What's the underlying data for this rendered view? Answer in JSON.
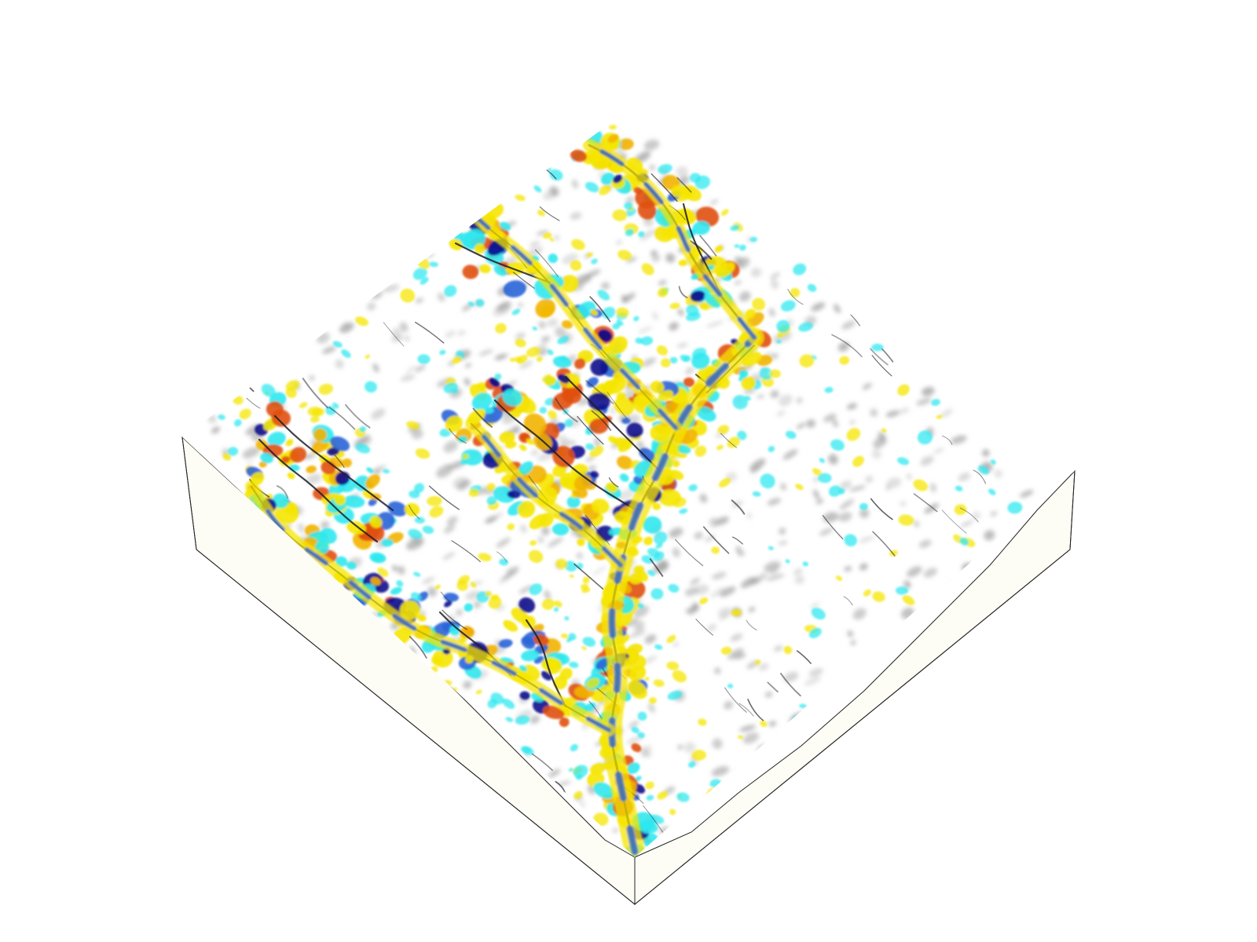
{
  "scene": {
    "description_label": "",
    "colors": {
      "background": "#ffffff",
      "block_side": "#fdfdf5",
      "block_edge": "#222222",
      "surface": "#ffffff",
      "shade": "#9a9a9a",
      "groove": "#1e1e28",
      "positive_low": "#f5e600",
      "positive_mid": "#f2b400",
      "positive_high": "#e0500a",
      "negative_low": "#30e8f0",
      "negative_mid": "#2a64d8",
      "negative_high": "#0a0a8c"
    },
    "icon": "terrain-curvature-block"
  }
}
